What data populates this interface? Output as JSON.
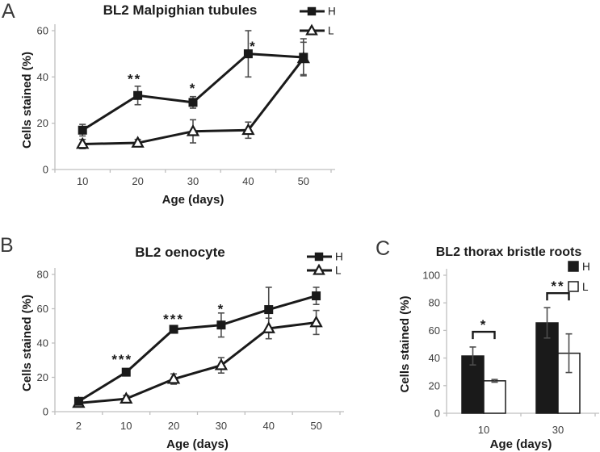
{
  "figure": {
    "background": "#ffffff",
    "colors": {
      "ink": "#1a1a1a",
      "axis": "#bfbfbf",
      "error_bar": "#4d4d4d",
      "tick_text": "#3d3d3d"
    },
    "panels": [
      {
        "label": "A",
        "title": "BL2 Malpighian tubules",
        "chart_data": {
          "type": "line",
          "xlabel": "Age (days)",
          "ylabel": "Cells stained (%)",
          "categories": [
            "10",
            "20",
            "30",
            "40",
            "50"
          ],
          "ylim": [
            0,
            60
          ],
          "yticks": [
            0,
            20,
            40,
            60
          ],
          "grid": false,
          "legend_position": "top-right",
          "series": [
            {
              "name": "H",
              "marker": "filled-square",
              "values": [
                17,
                32,
                29,
                50,
                48.5
              ],
              "errors": [
                2.5,
                4,
                2.5,
                10,
                8
              ]
            },
            {
              "name": "L",
              "marker": "open-triangle",
              "values": [
                11,
                11.5,
                16.5,
                17,
                48
              ],
              "errors": [
                2,
                1.5,
                5,
                3.5,
                7
              ]
            }
          ],
          "annotations": [
            {
              "text": "**",
              "category_index": 1,
              "y": 40,
              "dx": -4
            },
            {
              "text": "*",
              "category_index": 2,
              "y": 36,
              "dx": 0
            },
            {
              "text": "*",
              "category_index": 3,
              "y": 54,
              "dx": 6
            }
          ]
        }
      },
      {
        "label": "B",
        "title": "BL2 oenocyte",
        "chart_data": {
          "type": "line",
          "xlabel": "Age (days)",
          "ylabel": "Cells stained (%)",
          "categories": [
            "2",
            "10",
            "20",
            "30",
            "40",
            "50"
          ],
          "ylim": [
            0,
            80
          ],
          "yticks": [
            0,
            20,
            40,
            60,
            80
          ],
          "grid": false,
          "legend_position": "top-right",
          "series": [
            {
              "name": "H",
              "marker": "filled-square",
              "values": [
                6,
                23,
                48,
                50.5,
                59.5,
                67.5
              ],
              "errors": [
                1.5,
                2,
                2,
                7,
                13,
                5
              ]
            },
            {
              "name": "L",
              "marker": "open-triangle",
              "values": [
                5,
                7.5,
                19,
                27,
                48.5,
                52
              ],
              "errors": [
                1.5,
                2,
                3,
                4.5,
                6,
                7
              ]
            }
          ],
          "annotations": [
            {
              "text": "***",
              "category_index": 1,
              "y": 31.5,
              "dx": -5
            },
            {
              "text": "***",
              "category_index": 2,
              "y": 55,
              "dx": 0
            },
            {
              "text": "*",
              "category_index": 3,
              "y": 61,
              "dx": 0
            }
          ]
        }
      },
      {
        "label": "C",
        "title": "BL2 thorax bristle roots",
        "chart_data": {
          "type": "bar",
          "xlabel": "Age (days)",
          "ylabel": "Cells stained (%)",
          "categories": [
            "10",
            "30"
          ],
          "ylim": [
            0,
            100
          ],
          "yticks": [
            0,
            20,
            40,
            60,
            80,
            100
          ],
          "grid": false,
          "legend_position": "top-right",
          "series": [
            {
              "name": "H",
              "fill": "#1a1a1a",
              "values": [
                41.5,
                65.5
              ],
              "errors": [
                6.5,
                11
              ]
            },
            {
              "name": "L",
              "fill": "#ffffff",
              "values": [
                23.5,
                43.5
              ],
              "errors": [
                1,
                14
              ]
            }
          ],
          "brackets": [
            {
              "category_index": 0,
              "y": 59,
              "text": "*"
            },
            {
              "category_index": 1,
              "y": 87,
              "text": "**"
            }
          ]
        }
      }
    ]
  }
}
